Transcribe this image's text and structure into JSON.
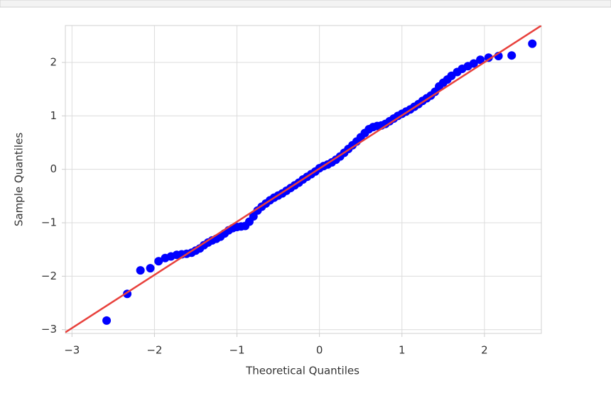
{
  "chart_data": {
    "type": "scatter",
    "xlabel": "Theoretical Quantiles",
    "ylabel": "Sample Quantiles",
    "xlim": [
      -3.08,
      2.69
    ],
    "ylim": [
      -3.07,
      2.69
    ],
    "xticks": [
      {
        "value": -3,
        "label": "−3"
      },
      {
        "value": -2,
        "label": "−2"
      },
      {
        "value": -1,
        "label": "−1"
      },
      0,
      1,
      2
    ],
    "yticks": [
      {
        "value": -3,
        "label": "−3"
      },
      {
        "value": -2,
        "label": "−2"
      },
      {
        "value": -1,
        "label": "−1"
      },
      0,
      1,
      2
    ],
    "grid": true,
    "points": {
      "color": "#0000ff",
      "x": [
        -2.58,
        -2.33,
        -2.17,
        -2.05,
        -1.95,
        -1.87,
        -1.8,
        -1.73,
        -1.67,
        -1.61,
        -1.55,
        -1.5,
        -1.45,
        -1.4,
        -1.35,
        -1.3,
        -1.25,
        -1.2,
        -1.15,
        -1.1,
        -1.05,
        -1.0,
        -0.95,
        -0.9,
        -0.85,
        -0.8,
        -0.75,
        -0.7,
        -0.65,
        -0.6,
        -0.55,
        -0.5,
        -0.45,
        -0.4,
        -0.35,
        -0.3,
        -0.25,
        -0.2,
        -0.15,
        -0.1,
        -0.05,
        0.0,
        0.05,
        0.1,
        0.15,
        0.2,
        0.25,
        0.3,
        0.35,
        0.4,
        0.45,
        0.5,
        0.55,
        0.6,
        0.65,
        0.7,
        0.75,
        0.8,
        0.85,
        0.9,
        0.95,
        1.0,
        1.05,
        1.1,
        1.15,
        1.2,
        1.25,
        1.3,
        1.35,
        1.4,
        1.45,
        1.5,
        1.55,
        1.6,
        1.67,
        1.73,
        1.8,
        1.87,
        1.95,
        2.05,
        2.17,
        2.33,
        2.58
      ],
      "y": [
        -2.83,
        -2.33,
        -1.89,
        -1.85,
        -1.72,
        -1.66,
        -1.63,
        -1.6,
        -1.59,
        -1.58,
        -1.56,
        -1.52,
        -1.48,
        -1.42,
        -1.37,
        -1.33,
        -1.3,
        -1.26,
        -1.2,
        -1.14,
        -1.1,
        -1.08,
        -1.07,
        -1.06,
        -0.98,
        -0.88,
        -0.77,
        -0.7,
        -0.64,
        -0.58,
        -0.53,
        -0.49,
        -0.45,
        -0.4,
        -0.35,
        -0.3,
        -0.25,
        -0.19,
        -0.14,
        -0.09,
        -0.04,
        0.02,
        0.06,
        0.09,
        0.13,
        0.18,
        0.24,
        0.31,
        0.38,
        0.45,
        0.52,
        0.6,
        0.68,
        0.75,
        0.79,
        0.81,
        0.82,
        0.85,
        0.9,
        0.95,
        1.0,
        1.04,
        1.08,
        1.12,
        1.17,
        1.22,
        1.28,
        1.33,
        1.38,
        1.45,
        1.55,
        1.62,
        1.68,
        1.75,
        1.82,
        1.88,
        1.93,
        1.98,
        2.05,
        2.09,
        2.12,
        2.13,
        2.35
      ]
    },
    "reference_line": {
      "color": "#e8413c",
      "x": [
        -3.08,
        2.69
      ],
      "y": [
        -3.05,
        2.69
      ]
    }
  }
}
